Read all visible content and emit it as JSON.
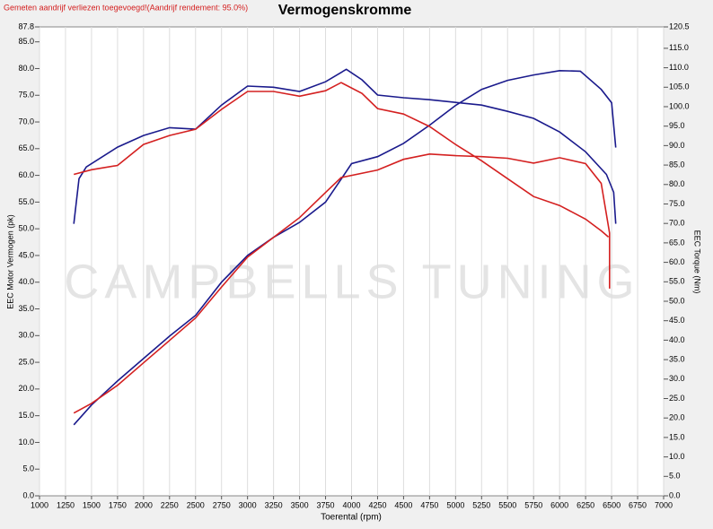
{
  "chart_data": {
    "type": "line",
    "title": "Vermogenskromme",
    "subtitle": "Gemeten aandrijf verliezen toegevoegd!(Aandrijf rendement: 95.0%)",
    "watermark": "CAMPBELLS TUNING",
    "x_label": "Toerental (rpm)",
    "y_label": "EEC Motor Vermogen (pk)",
    "y2_label": "EEC Torque (Nm)",
    "grid": true,
    "xlim": [
      1000,
      7000
    ],
    "xticks": [
      1000,
      1250,
      1500,
      1750,
      2000,
      2250,
      2500,
      2750,
      3000,
      3250,
      3500,
      3750,
      4000,
      4250,
      4500,
      4750,
      5000,
      5250,
      5500,
      5750,
      6000,
      6250,
      6500,
      6750,
      7000
    ],
    "ylim": [
      0,
      87.8
    ],
    "yticks": [
      {
        "value": 0,
        "label": "0.0"
      },
      {
        "value": 5,
        "label": "5.0"
      },
      {
        "value": 10,
        "label": "10.0"
      },
      {
        "value": 15,
        "label": "15.0"
      },
      {
        "value": 20,
        "label": "20.0"
      },
      {
        "value": 25,
        "label": "25.0"
      },
      {
        "value": 30,
        "label": "30.0"
      },
      {
        "value": 35,
        "label": "35.0"
      },
      {
        "value": 40,
        "label": "40.0"
      },
      {
        "value": 45,
        "label": "45.0"
      },
      {
        "value": 50,
        "label": "50.0"
      },
      {
        "value": 55,
        "label": "55.0"
      },
      {
        "value": 60,
        "label": "60.0"
      },
      {
        "value": 65,
        "label": "65.0"
      },
      {
        "value": 70,
        "label": "70.0"
      },
      {
        "value": 75,
        "label": "75.0"
      },
      {
        "value": 80,
        "label": "80.0"
      },
      {
        "value": 85,
        "label": "85.0"
      },
      87.8
    ],
    "y2lim": [
      0,
      120.5
    ],
    "y2ticks": [
      {
        "value": 0,
        "label": "0.0"
      },
      {
        "value": 5,
        "label": "5.0"
      },
      {
        "value": 10,
        "label": "10.0"
      },
      {
        "value": 15,
        "label": "15.0"
      },
      {
        "value": 20,
        "label": "20.0"
      },
      {
        "value": 25,
        "label": "25.0"
      },
      {
        "value": 30,
        "label": "30.0"
      },
      {
        "value": 35,
        "label": "35.0"
      },
      {
        "value": 40,
        "label": "40.0"
      },
      {
        "value": 45,
        "label": "45.0"
      },
      {
        "value": 50,
        "label": "50.0"
      },
      {
        "value": 55,
        "label": "55.0"
      },
      {
        "value": 60,
        "label": "60.0"
      },
      {
        "value": 65,
        "label": "65.0"
      },
      {
        "value": 70,
        "label": "70.0"
      },
      {
        "value": 75,
        "label": "75.0"
      },
      {
        "value": 80,
        "label": "80.0"
      },
      {
        "value": 85,
        "label": "85.0"
      },
      {
        "value": 90,
        "label": "90.0"
      },
      {
        "value": 95,
        "label": "95.0"
      },
      {
        "value": 100,
        "label": "100.0"
      },
      {
        "value": 105,
        "label": "105.0"
      },
      {
        "value": 110,
        "label": "110.0"
      },
      {
        "value": 115,
        "label": "115.0"
      },
      120.5
    ],
    "series": [
      {
        "color": "#1a1a8c",
        "axis": "y",
        "x": [
          1330,
          1500,
          1750,
          2000,
          2250,
          2500,
          2750,
          3000,
          3250,
          3500,
          3750,
          3900,
          4000,
          4250,
          4500,
          4750,
          5000,
          5250,
          5500,
          5750,
          6000,
          6200,
          6400,
          6500,
          6540
        ],
        "values": [
          13.3,
          17,
          21.5,
          25.7,
          29.9,
          33.8,
          40,
          45,
          48.4,
          51.2,
          55,
          59.3,
          62.2,
          63.5,
          66,
          69.4,
          73.1,
          76.1,
          77.8,
          78.8,
          79.6,
          79.5,
          76.1,
          73.6,
          65.2
        ]
      },
      {
        "color": "#d42020",
        "axis": "y",
        "x": [
          1330,
          1500,
          1750,
          2000,
          2250,
          2500,
          2750,
          3000,
          3250,
          3500,
          3750,
          3900,
          4250,
          4500,
          4750,
          5000,
          5250,
          5500,
          5750,
          6000,
          6250,
          6400,
          6480,
          6480
        ],
        "values": [
          15.5,
          17.3,
          20.7,
          24.9,
          29.1,
          33.3,
          39.1,
          44.7,
          48.4,
          52.1,
          56.8,
          59.6,
          61,
          63,
          64,
          63.7,
          63.5,
          63.2,
          62.3,
          63.3,
          62.2,
          58.5,
          49.2,
          38.8
        ]
      },
      {
        "color": "#1a1a8c",
        "axis": "y2",
        "x": [
          1330,
          1380,
          1450,
          1750,
          2000,
          2250,
          2500,
          2750,
          3000,
          3250,
          3500,
          3750,
          3950,
          4100,
          4250,
          4500,
          4750,
          5000,
          5250,
          5500,
          5750,
          6000,
          6250,
          6450,
          6520,
          6540
        ],
        "values": [
          69.9,
          81.5,
          84.5,
          89.6,
          92.6,
          94.6,
          94.2,
          100.4,
          105.3,
          105,
          103.9,
          106.4,
          109.6,
          106.9,
          103,
          102.3,
          101.8,
          101.1,
          100.4,
          98.8,
          97,
          93.5,
          88.4,
          82.6,
          78,
          69.9
        ]
      },
      {
        "color": "#d42020",
        "axis": "y2",
        "x": [
          1330,
          1500,
          1750,
          2000,
          2250,
          2500,
          2750,
          3000,
          3250,
          3500,
          3750,
          3900,
          4100,
          4250,
          4500,
          4750,
          5000,
          5250,
          5500,
          5750,
          6000,
          6250,
          6400,
          6470
        ],
        "values": [
          82.6,
          83.8,
          84.9,
          90.3,
          92.6,
          94.2,
          99.3,
          103.9,
          103.9,
          102.7,
          104.1,
          106.2,
          103.4,
          99.5,
          98.1,
          94.9,
          90.3,
          86.1,
          81.5,
          76.9,
          74.6,
          71.1,
          68.1,
          66.5
        ]
      }
    ]
  }
}
